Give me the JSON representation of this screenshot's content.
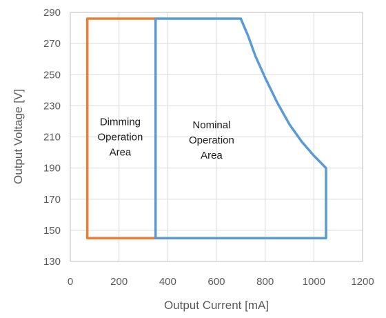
{
  "chart_data": {
    "type": "line",
    "title": "",
    "xlabel": "Output Current [mA]",
    "ylabel": "Output Voltage [V]",
    "xlim": [
      0,
      1200
    ],
    "ylim": [
      130,
      290
    ],
    "xticks": [
      0,
      200,
      400,
      600,
      800,
      1000,
      1200
    ],
    "yticks": [
      130,
      150,
      170,
      190,
      210,
      230,
      250,
      270,
      290
    ],
    "grid": true,
    "legend": "none",
    "series": [
      {
        "color": "#ED7D31",
        "closed": true,
        "x": [
          70,
          350,
          350,
          70,
          70
        ],
        "y": [
          145,
          145,
          286,
          286,
          145
        ]
      },
      {
        "color": "#5B9BD5",
        "closed": true,
        "x": [
          350,
          1050,
          1050,
          1000,
          950,
          900,
          850,
          800,
          760,
          730,
          700,
          350,
          350
        ],
        "y": [
          145,
          145,
          190,
          198,
          207,
          218,
          232,
          248,
          262,
          275,
          286,
          286,
          145
        ]
      }
    ],
    "annotations": [
      {
        "lines": [
          "Dimming",
          "Operation",
          "Area"
        ],
        "x": 205,
        "y": 210,
        "color": "#1a1a1a"
      },
      {
        "lines": [
          "Nominal",
          "Operation",
          "Area"
        ],
        "x": 580,
        "y": 208,
        "color": "#1a1a1a"
      }
    ]
  }
}
